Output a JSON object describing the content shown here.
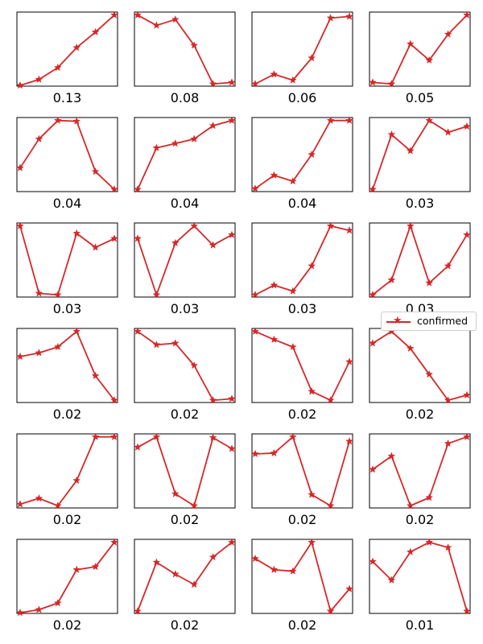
{
  "chart_data": {
    "type": "line",
    "layout": "small-multiples grid, 6 rows x 4 columns",
    "color": "#d62728",
    "marker": "star",
    "legend": {
      "label": "confirmed",
      "placement": "right, beside row 4"
    },
    "axes_ticks": "hidden",
    "panels": [
      {
        "label": "0.13",
        "values": [
          0.01,
          0.09,
          0.25,
          0.52,
          0.73,
          0.96
        ]
      },
      {
        "label": "0.08",
        "values": [
          0.96,
          0.82,
          0.9,
          0.55,
          0.03,
          0.05
        ]
      },
      {
        "label": "0.06",
        "values": [
          0.03,
          0.16,
          0.08,
          0.38,
          0.92,
          0.94
        ]
      },
      {
        "label": "0.05",
        "values": [
          0.05,
          0.03,
          0.57,
          0.35,
          0.7,
          0.96
        ]
      },
      {
        "label": "0.04",
        "values": [
          0.32,
          0.71,
          0.96,
          0.95,
          0.27,
          0.03
        ]
      },
      {
        "label": "0.04",
        "values": [
          0.03,
          0.59,
          0.65,
          0.71,
          0.89,
          0.96
        ]
      },
      {
        "label": "0.04",
        "values": [
          0.04,
          0.22,
          0.14,
          0.5,
          0.96,
          0.96
        ]
      },
      {
        "label": "0.03",
        "values": [
          0.03,
          0.77,
          0.55,
          0.96,
          0.8,
          0.88
        ]
      },
      {
        "label": "0.03",
        "values": [
          0.96,
          0.05,
          0.03,
          0.86,
          0.67,
          0.79
        ]
      },
      {
        "label": "0.03",
        "values": [
          0.79,
          0.03,
          0.73,
          0.96,
          0.7,
          0.84
        ]
      },
      {
        "label": "0.03",
        "values": [
          0.03,
          0.16,
          0.08,
          0.42,
          0.96,
          0.9
        ]
      },
      {
        "label": "0.03",
        "values": [
          0.03,
          0.23,
          0.96,
          0.19,
          0.42,
          0.84
        ]
      },
      {
        "label": "0.02",
        "values": [
          0.62,
          0.67,
          0.75,
          0.96,
          0.36,
          0.03
        ]
      },
      {
        "label": "0.02",
        "values": [
          0.96,
          0.78,
          0.8,
          0.5,
          0.03,
          0.05
        ]
      },
      {
        "label": "0.02",
        "values": [
          0.96,
          0.85,
          0.75,
          0.15,
          0.03,
          0.55
        ]
      },
      {
        "label": "0.02",
        "values": [
          0.8,
          0.96,
          0.73,
          0.38,
          0.03,
          0.1
        ]
      },
      {
        "label": "0.02",
        "values": [
          0.05,
          0.13,
          0.03,
          0.37,
          0.96,
          0.96
        ]
      },
      {
        "label": "0.02",
        "values": [
          0.82,
          0.96,
          0.19,
          0.03,
          0.95,
          0.8
        ]
      },
      {
        "label": "0.02",
        "values": [
          0.73,
          0.74,
          0.96,
          0.18,
          0.03,
          0.9
        ]
      },
      {
        "label": "0.02",
        "values": [
          0.52,
          0.7,
          0.03,
          0.14,
          0.87,
          0.96
        ]
      },
      {
        "label": "0.02",
        "values": [
          0.01,
          0.05,
          0.14,
          0.59,
          0.63,
          0.96
        ]
      },
      {
        "label": "0.02",
        "values": [
          0.03,
          0.69,
          0.53,
          0.39,
          0.76,
          0.96
        ]
      },
      {
        "label": "0.02",
        "values": [
          0.74,
          0.59,
          0.57,
          0.96,
          0.03,
          0.33
        ]
      },
      {
        "label": "0.01",
        "values": [
          0.7,
          0.45,
          0.83,
          0.96,
          0.89,
          0.03
        ]
      }
    ]
  }
}
